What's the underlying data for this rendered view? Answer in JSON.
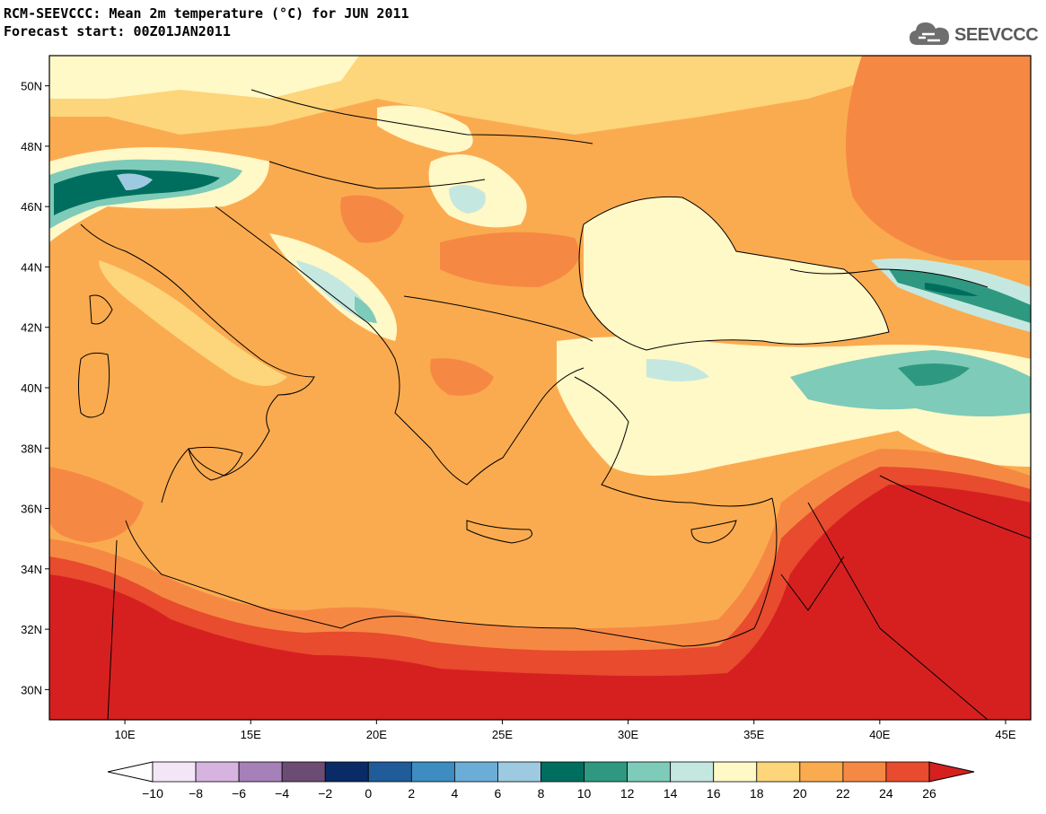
{
  "header": {
    "title": "RCM-SEEVCCC: Mean 2m temperature (°C) for JUN 2011",
    "subtitle": "Forecast start: 00Z01JAN2011"
  },
  "logo": {
    "text": "SEEVCCC",
    "icon": "cloud-icon"
  },
  "map": {
    "lon_range": [
      7,
      46
    ],
    "lat_range": [
      29,
      51
    ],
    "lat_ticks": [
      "50N",
      "48N",
      "46N",
      "44N",
      "42N",
      "40N",
      "38N",
      "36N",
      "34N",
      "32N",
      "30N"
    ],
    "lon_ticks": [
      "10E",
      "15E",
      "20E",
      "25E",
      "30E",
      "35E",
      "40E",
      "45E"
    ]
  },
  "colorbar": {
    "labels": [
      "−10",
      "−8",
      "−6",
      "−4",
      "−2",
      "0",
      "2",
      "4",
      "6",
      "8",
      "10",
      "12",
      "14",
      "16",
      "18",
      "20",
      "22",
      "24",
      "26"
    ],
    "colors": {
      "under": "#ffffff",
      "bins": [
        "#f2e6f7",
        "#d7b3e0",
        "#a680b8",
        "#6b4d73",
        "#0a2b66",
        "#1f5c99",
        "#3d8cc2",
        "#6badd6",
        "#9ecae1",
        "#006e5e",
        "#2e9980",
        "#7ecbb9",
        "#c4e8e0",
        "#fff8c7",
        "#fdd57a",
        "#fbab4f",
        "#f58943",
        "#e84b2e"
      ],
      "over": "#d62020"
    }
  }
}
